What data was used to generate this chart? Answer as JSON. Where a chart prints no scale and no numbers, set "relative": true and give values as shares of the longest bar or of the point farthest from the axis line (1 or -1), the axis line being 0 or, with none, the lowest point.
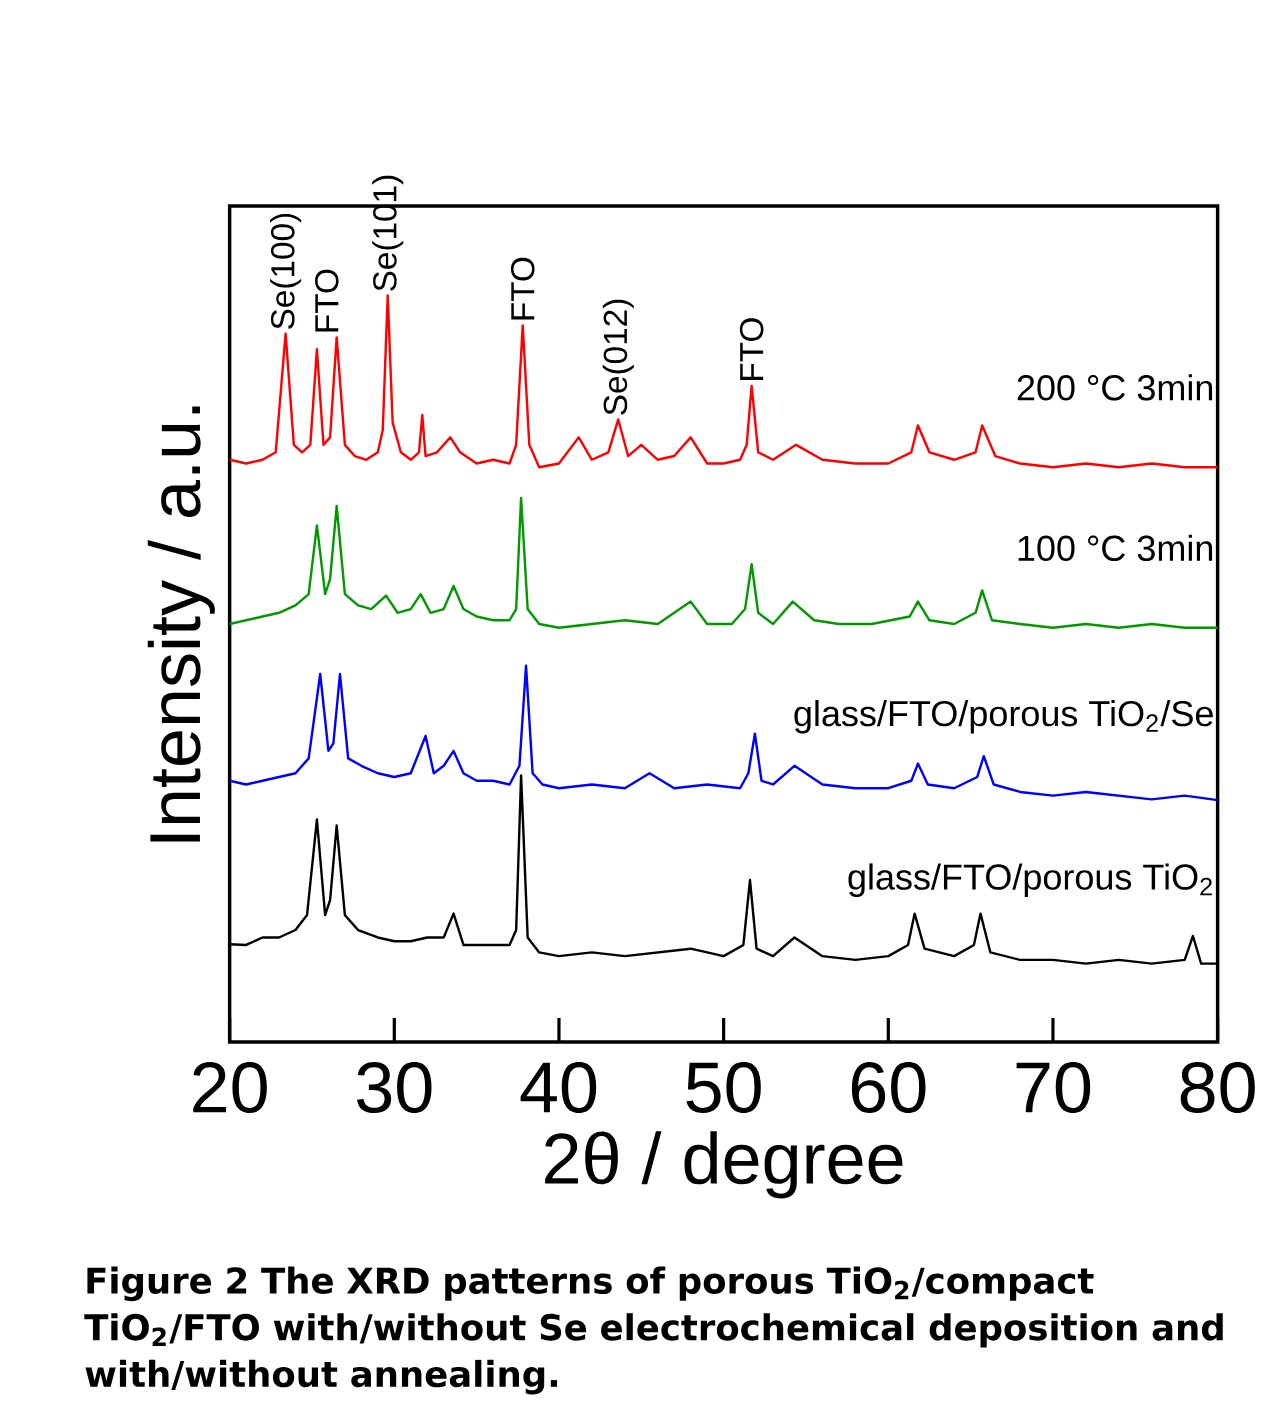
{
  "chart_data": {
    "type": "line",
    "relative": true,
    "xlabel": "2θ / degree",
    "ylabel": "Intensity / a.u.",
    "xlim": [
      20,
      80
    ],
    "xticks": [
      20,
      30,
      40,
      50,
      60,
      70,
      80
    ],
    "legend": false,
    "grid": false,
    "marker": "none",
    "line_style": "solid",
    "series": [
      {
        "name": "200 °C 3min",
        "color": "#ff0000",
        "x": [
          20,
          21,
          22,
          22.8,
          23.4,
          23.9,
          24.4,
          24.9,
          25.3,
          25.7,
          26.1,
          26.5,
          27.0,
          27.6,
          28.3,
          29.0,
          29.3,
          29.6,
          29.9,
          30.4,
          31.0,
          31.5,
          31.7,
          31.9,
          32.6,
          33.4,
          34.0,
          35.0,
          36.0,
          37.0,
          37.4,
          37.8,
          38.2,
          38.8,
          40.0,
          41.2,
          42.0,
          43.0,
          43.6,
          44.2,
          45.0,
          46.0,
          47.0,
          48.0,
          49.0,
          50.0,
          51.0,
          51.4,
          51.7,
          52.1,
          53.0,
          54.4,
          56.0,
          58.0,
          60.0,
          61.4,
          61.8,
          62.5,
          64.0,
          65.3,
          65.7,
          66.5,
          68.0,
          70.0,
          72.0,
          74.0,
          76.0,
          78.0,
          80.0
        ],
        "values": [
          0.78,
          0.775,
          0.78,
          0.79,
          0.949,
          0.8,
          0.79,
          0.8,
          0.928,
          0.8,
          0.81,
          0.944,
          0.8,
          0.785,
          0.78,
          0.79,
          0.82,
          1.0,
          0.83,
          0.79,
          0.78,
          0.79,
          0.84,
          0.785,
          0.79,
          0.81,
          0.79,
          0.775,
          0.78,
          0.775,
          0.8,
          0.96,
          0.8,
          0.77,
          0.775,
          0.81,
          0.78,
          0.79,
          0.834,
          0.785,
          0.8,
          0.78,
          0.785,
          0.81,
          0.775,
          0.775,
          0.78,
          0.8,
          0.879,
          0.79,
          0.78,
          0.8,
          0.78,
          0.775,
          0.775,
          0.79,
          0.826,
          0.79,
          0.78,
          0.79,
          0.826,
          0.785,
          0.775,
          0.77,
          0.775,
          0.77,
          0.775,
          0.77,
          0.77
        ]
      },
      {
        "name": "100 °C 3min",
        "color": "#009900",
        "x": [
          20,
          21,
          22,
          23,
          24,
          24.8,
          25.3,
          25.8,
          26.1,
          26.5,
          27.0,
          27.8,
          28.6,
          29.5,
          30.2,
          31.0,
          31.6,
          32.2,
          33.0,
          33.6,
          34.2,
          35.0,
          36.0,
          37.0,
          37.4,
          37.7,
          38.1,
          38.8,
          40.0,
          42.0,
          44.0,
          46.0,
          48.0,
          49.0,
          50.5,
          51.3,
          51.7,
          52.1,
          53.0,
          54.2,
          55.5,
          57.0,
          59.0,
          61.3,
          61.8,
          62.5,
          64.0,
          65.3,
          65.7,
          66.3,
          68.0,
          70.0,
          72.0,
          74.0,
          76.0,
          78.0,
          80.0
        ],
        "values": [
          0.56,
          0.565,
          0.57,
          0.575,
          0.585,
          0.6,
          0.692,
          0.6,
          0.62,
          0.718,
          0.6,
          0.585,
          0.58,
          0.598,
          0.575,
          0.58,
          0.6,
          0.575,
          0.58,
          0.611,
          0.58,
          0.57,
          0.565,
          0.565,
          0.58,
          0.729,
          0.58,
          0.56,
          0.555,
          0.56,
          0.565,
          0.56,
          0.59,
          0.56,
          0.56,
          0.58,
          0.64,
          0.575,
          0.56,
          0.59,
          0.565,
          0.56,
          0.56,
          0.57,
          0.59,
          0.565,
          0.56,
          0.575,
          0.605,
          0.565,
          0.56,
          0.555,
          0.56,
          0.555,
          0.56,
          0.555,
          0.555
        ]
      },
      {
        "name": "glass/FTO/porous TiO$_{2}$/Se",
        "color": "#0000ff",
        "x": [
          20,
          21,
          22,
          23,
          24,
          24.8,
          25.5,
          26.0,
          26.3,
          26.7,
          27.2,
          28.0,
          29.0,
          30.0,
          31.0,
          31.9,
          32.4,
          33.0,
          33.6,
          34.2,
          35.0,
          36.0,
          37.0,
          37.6,
          38.0,
          38.4,
          39.0,
          40.0,
          42.0,
          44.0,
          45.5,
          47.0,
          49.0,
          51.0,
          51.5,
          51.9,
          52.3,
          53.0,
          54.3,
          56.0,
          58.0,
          60.0,
          61.4,
          61.8,
          62.4,
          64.0,
          65.4,
          65.8,
          66.4,
          68.0,
          70.0,
          72.0,
          74.0,
          76.0,
          78.0,
          80.0
        ],
        "values": [
          0.35,
          0.345,
          0.35,
          0.355,
          0.36,
          0.38,
          0.493,
          0.39,
          0.4,
          0.493,
          0.38,
          0.37,
          0.36,
          0.355,
          0.36,
          0.41,
          0.36,
          0.37,
          0.39,
          0.36,
          0.35,
          0.35,
          0.345,
          0.37,
          0.504,
          0.36,
          0.345,
          0.34,
          0.345,
          0.34,
          0.36,
          0.34,
          0.345,
          0.34,
          0.36,
          0.413,
          0.35,
          0.345,
          0.37,
          0.345,
          0.34,
          0.34,
          0.35,
          0.373,
          0.345,
          0.34,
          0.355,
          0.383,
          0.345,
          0.335,
          0.33,
          0.335,
          0.33,
          0.325,
          0.33,
          0.324
        ]
      },
      {
        "name": "glass/FTO/porous TiO$_{2}$",
        "color": "#000000",
        "x": [
          20,
          21,
          22,
          23,
          24,
          24.7,
          25.3,
          25.8,
          26.1,
          26.5,
          27.0,
          27.8,
          29.0,
          30.0,
          31.0,
          32.0,
          33.0,
          33.6,
          34.2,
          35.0,
          36.0,
          37.0,
          37.4,
          37.7,
          38.1,
          38.8,
          40.0,
          42.0,
          44.0,
          46.0,
          48.0,
          50.0,
          51.2,
          51.6,
          52.0,
          53.0,
          54.3,
          56.0,
          58.0,
          60.0,
          61.2,
          61.6,
          62.2,
          64.0,
          65.2,
          65.6,
          66.2,
          68.0,
          70.0,
          72.0,
          74.0,
          76.0,
          78.0,
          78.5,
          79.0,
          80.0
        ],
        "values": [
          0.131,
          0.13,
          0.14,
          0.14,
          0.15,
          0.17,
          0.298,
          0.17,
          0.19,
          0.29,
          0.17,
          0.15,
          0.14,
          0.135,
          0.135,
          0.14,
          0.14,
          0.172,
          0.13,
          0.13,
          0.13,
          0.13,
          0.15,
          0.357,
          0.14,
          0.12,
          0.115,
          0.12,
          0.115,
          0.12,
          0.125,
          0.115,
          0.13,
          0.217,
          0.125,
          0.115,
          0.14,
          0.115,
          0.11,
          0.115,
          0.13,
          0.172,
          0.125,
          0.115,
          0.13,
          0.172,
          0.12,
          0.11,
          0.11,
          0.105,
          0.11,
          0.105,
          0.11,
          0.142,
          0.105,
          0.105
        ]
      }
    ],
    "annotations": [
      {
        "text": "Se(100)",
        "x": 23.4,
        "y": 0.949
      },
      {
        "text": "FTO",
        "x": 25.9,
        "y": 0.944
      },
      {
        "text": "Se(101)",
        "x": 29.6,
        "y": 1.0
      },
      {
        "text": "FTO",
        "x": 37.8,
        "y": 0.96
      },
      {
        "text": "Se(012)",
        "x": 43.6,
        "y": 0.834
      },
      {
        "text": "FTO",
        "x": 51.7,
        "y": 0.879
      },
      "**Figure 2** The XRD patterns of porous TiO$_{2}$/compact TiO$_{2}$/FTO with/without Se electrochemical deposition and with/without annealing."
    ]
  }
}
